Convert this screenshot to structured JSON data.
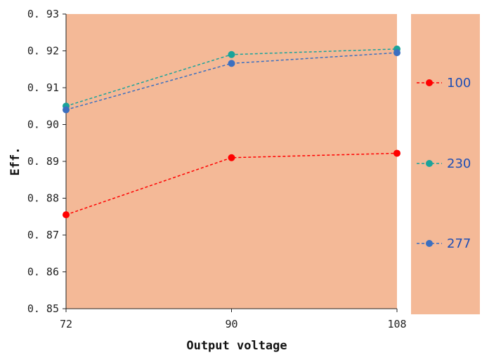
{
  "chart_data": {
    "type": "line",
    "title": "",
    "xlabel": "Output voltage",
    "ylabel": "Eff.",
    "x": [
      72,
      90,
      108
    ],
    "x_tick_labels": [
      "72",
      "90",
      "108"
    ],
    "ylim": [
      0.85,
      0.93
    ],
    "y_ticks": [
      0.85,
      0.86,
      0.87,
      0.88,
      0.89,
      0.9,
      0.91,
      0.92,
      0.93
    ],
    "y_tick_labels": [
      "0. 85",
      "0. 86",
      "0. 87",
      "0. 88",
      "0. 89",
      "0. 90",
      "0. 91",
      "0. 92",
      "0. 93"
    ],
    "grid": false,
    "plot_background": "#F4B997",
    "legend_position": "right",
    "line_style": "dashed",
    "series": [
      {
        "name": "100",
        "color": "#FF0000",
        "values": [
          0.8755,
          0.891,
          0.8922
        ]
      },
      {
        "name": "230",
        "color": "#1AA39A",
        "values": [
          0.905,
          0.919,
          0.9205
        ]
      },
      {
        "name": "277",
        "color": "#3B6FC0",
        "values": [
          0.904,
          0.9166,
          0.9195
        ]
      }
    ]
  }
}
